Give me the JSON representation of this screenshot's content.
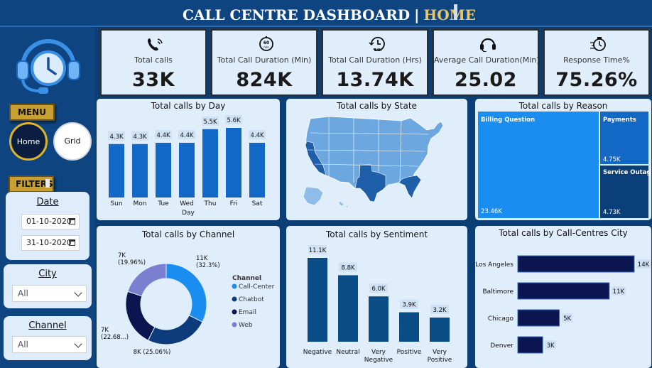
{
  "header": {
    "title": "CALL CENTRE DASHBOARD",
    "separator": "|",
    "page": "HOME"
  },
  "sidebar": {
    "menu_label": "MENU",
    "home_label": "Home",
    "grid_label": "Grid",
    "filters_label": "FILTERS",
    "date_filter": {
      "title": "Date",
      "start": "01-10-2020",
      "end": "31-10-2020"
    },
    "city_filter": {
      "title": "City",
      "value": "All"
    },
    "channel_filter": {
      "title": "Channel",
      "value": "All"
    }
  },
  "kpis": [
    {
      "label": "Total calls",
      "value": "33K",
      "icon": "phone-icon"
    },
    {
      "label": "Total Call Duration (Min)",
      "value": "824K",
      "icon": "sixty-min-timer-icon"
    },
    {
      "label": "Total Call Duration (Hrs)",
      "value": "13.74K",
      "icon": "24h-clock-icon"
    },
    {
      "label": "Average Call Duration(Min)",
      "value": "25.02",
      "icon": "headset-icon"
    },
    {
      "label": "Response Time%",
      "value": "75.26%",
      "icon": "stopwatch-icon"
    }
  ],
  "colors": {
    "bar": "#1168c7",
    "dark_bar": "#0a4c86",
    "navy_bar": "#0b1550",
    "accent_gold": "#c8a032",
    "map_blue": "#6da7e0"
  },
  "chart_data": [
    {
      "type": "bar",
      "title": "Total calls by Day",
      "xlabel": "Day",
      "categories": [
        "Sun",
        "Mon",
        "Tue",
        "Wed",
        "Thu",
        "Fri",
        "Sat"
      ],
      "values": [
        4.3,
        4.3,
        4.4,
        4.4,
        5.5,
        5.6,
        4.4
      ],
      "labels": [
        "4.3K",
        "4.3K",
        "4.4K",
        "4.4K",
        "5.5K",
        "5.6K",
        "4.4K"
      ],
      "unit": "K"
    },
    {
      "type": "heatmap",
      "title": "Total calls by State"
    },
    {
      "type": "treemap",
      "title": "Total calls by Reason",
      "categories": [
        "Billing Question",
        "Payments",
        "Service Outage"
      ],
      "values": [
        23.46,
        4.75,
        4.73
      ],
      "labels": [
        "23.46K",
        "4.75K",
        "4.73K"
      ]
    },
    {
      "type": "pie",
      "title": "Total calls by Channel",
      "legend_title": "Channel",
      "categories": [
        "Call-Center",
        "Chatbot",
        "Email",
        "Web"
      ],
      "values": [
        11,
        8,
        7,
        7
      ],
      "labels": [
        "11K (32.3%)",
        "8K (25.06%)",
        "7K (22.68...)",
        "7K (19.96%)"
      ],
      "percents": [
        32.3,
        25.06,
        22.68,
        19.96
      ],
      "colors": [
        "#1a8ef0",
        "#0c3c7c",
        "#0b1550",
        "#7b7fcf"
      ]
    },
    {
      "type": "bar",
      "title": "Total calls by Sentiment",
      "categories": [
        "Negative",
        "Neutral",
        "Very Negative",
        "Positive",
        "Very Positive"
      ],
      "values": [
        11.1,
        8.8,
        6.0,
        3.9,
        3.2
      ],
      "labels": [
        "11.1K",
        "8.8K",
        "6.0K",
        "3.9K",
        "3.2K"
      ]
    },
    {
      "type": "bar",
      "orientation": "horizontal",
      "title": "Total calls by Call-Centres City",
      "categories": [
        "Los Angeles",
        "Baltimore",
        "Chicago",
        "Denver"
      ],
      "values": [
        14,
        11,
        5,
        3
      ],
      "labels": [
        "14K",
        "11K",
        "5K",
        "3K"
      ]
    }
  ]
}
